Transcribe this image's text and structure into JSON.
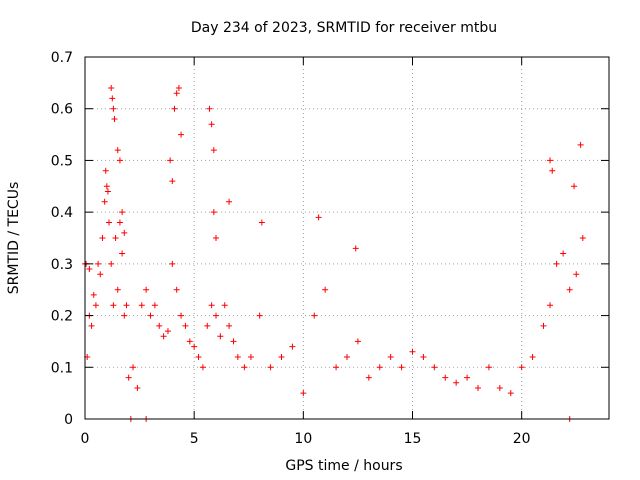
{
  "chart_data": {
    "type": "scatter",
    "title": "Day 234 of 2023, SRMTID for receiver mtbu",
    "xlabel": "GPS time / hours",
    "ylabel": "SRMTID / TECUs",
    "xlim": [
      0,
      24
    ],
    "ylim": [
      0,
      0.7
    ],
    "xticks": [
      0,
      5,
      10,
      15,
      20
    ],
    "xtick_labels": [
      "0",
      "5",
      "10",
      "15",
      "20"
    ],
    "yticks": [
      0,
      0.1,
      0.2,
      0.3,
      0.4,
      0.5,
      0.6,
      0.7
    ],
    "ytick_labels": [
      "0",
      "0.1",
      "0.2",
      "0.3",
      "0.4",
      "0.5",
      "0.6",
      "0.7"
    ],
    "grid": true,
    "marker": "+",
    "marker_color": "#ff0000",
    "series": [
      {
        "name": "SRMTID",
        "x": [
          0.0,
          0.1,
          0.2,
          0.3,
          0.4,
          0.5,
          0.6,
          0.7,
          0.8,
          0.9,
          1.0,
          1.1,
          1.2,
          1.3,
          1.4,
          1.5,
          1.6,
          1.7,
          1.8,
          1.9,
          2.0,
          2.2,
          2.4,
          2.6,
          2.8,
          3.0,
          3.2,
          3.4,
          3.6,
          3.8,
          4.0,
          4.2,
          4.4,
          4.6,
          4.8,
          5.0,
          5.2,
          5.4,
          5.6,
          5.8,
          6.0,
          6.2,
          6.4,
          6.6,
          6.8,
          7.0,
          7.3,
          7.6,
          8.0,
          8.5,
          9.0,
          9.5,
          10.0,
          10.5,
          11.0,
          11.5,
          12.0,
          12.5,
          13.0,
          13.5,
          14.0,
          14.5,
          15.0,
          15.5,
          16.0,
          16.5,
          17.0,
          17.5,
          18.0,
          18.5,
          19.0,
          19.5,
          20.0,
          20.5,
          21.0,
          21.3,
          21.6,
          21.9,
          22.2,
          22.5,
          22.8,
          1.2,
          1.25,
          1.3,
          1.35,
          1.5,
          1.6,
          4.1,
          4.2,
          4.3,
          4.4,
          5.7,
          5.8,
          5.9,
          6.6,
          21.3,
          21.4,
          22.4,
          22.7,
          0.95,
          1.05,
          1.7,
          1.8,
          3.9,
          4.0,
          5.9,
          6.0,
          10.7,
          12.4,
          8.1,
          0.05,
          0.2,
          2.1,
          2.8,
          22.2
        ],
        "y": [
          0.3,
          0.12,
          0.2,
          0.18,
          0.24,
          0.22,
          0.3,
          0.28,
          0.35,
          0.42,
          0.45,
          0.38,
          0.3,
          0.22,
          0.35,
          0.25,
          0.38,
          0.32,
          0.2,
          0.22,
          0.08,
          0.1,
          0.06,
          0.22,
          0.25,
          0.2,
          0.22,
          0.18,
          0.16,
          0.17,
          0.3,
          0.25,
          0.2,
          0.18,
          0.15,
          0.14,
          0.12,
          0.1,
          0.18,
          0.22,
          0.2,
          0.16,
          0.22,
          0.18,
          0.15,
          0.12,
          0.1,
          0.12,
          0.2,
          0.1,
          0.12,
          0.14,
          0.05,
          0.2,
          0.25,
          0.1,
          0.12,
          0.15,
          0.08,
          0.1,
          0.12,
          0.1,
          0.13,
          0.12,
          0.1,
          0.08,
          0.07,
          0.08,
          0.06,
          0.1,
          0.06,
          0.05,
          0.1,
          0.12,
          0.18,
          0.22,
          0.3,
          0.32,
          0.25,
          0.28,
          0.35,
          0.64,
          0.62,
          0.6,
          0.58,
          0.52,
          0.5,
          0.6,
          0.63,
          0.64,
          0.55,
          0.6,
          0.57,
          0.52,
          0.42,
          0.5,
          0.48,
          0.45,
          0.53,
          0.48,
          0.44,
          0.4,
          0.36,
          0.5,
          0.46,
          0.4,
          0.35,
          0.39,
          0.33,
          0.38,
          0.3,
          0.29,
          0.0,
          0.0,
          0.0
        ]
      }
    ]
  }
}
